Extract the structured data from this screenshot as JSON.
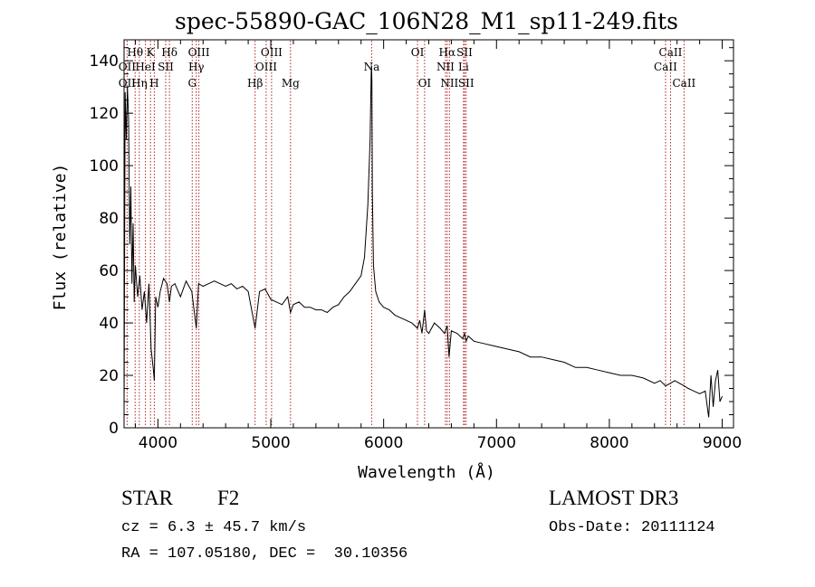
{
  "chart_data": {
    "type": "line",
    "title": "spec-55890-GAC_106N28_M1_sp11-249.fits",
    "xlabel": "Wavelength (Å)",
    "ylabel": "Flux (relative)",
    "xlim": [
      3700,
      9100
    ],
    "ylim": [
      0,
      148
    ],
    "xticks": [
      4000,
      5000,
      6000,
      7000,
      8000,
      9000
    ],
    "xtick_labels": [
      "4000",
      "5000",
      "6000",
      "7000",
      "8000",
      "9000"
    ],
    "yticks": [
      0,
      20,
      40,
      60,
      80,
      100,
      120,
      140
    ],
    "ytick_labels": [
      "0",
      "20",
      "40",
      "60",
      "80",
      "100",
      "120",
      "140"
    ],
    "line_color": "#000000",
    "marker_color": "#b22222",
    "spectrum": {
      "x": [
        3700,
        3710,
        3720,
        3730,
        3740,
        3750,
        3760,
        3770,
        3780,
        3790,
        3800,
        3820,
        3840,
        3860,
        3880,
        3900,
        3920,
        3940,
        3960,
        3968,
        3980,
        4000,
        4020,
        4050,
        4080,
        4102,
        4120,
        4150,
        4200,
        4250,
        4300,
        4340,
        4360,
        4400,
        4450,
        4500,
        4550,
        4600,
        4650,
        4700,
        4750,
        4800,
        4861,
        4900,
        4950,
        5000,
        5050,
        5100,
        5150,
        5175,
        5200,
        5250,
        5300,
        5350,
        5400,
        5450,
        5500,
        5550,
        5600,
        5650,
        5700,
        5750,
        5800,
        5830,
        5860,
        5880,
        5890,
        5893,
        5896,
        5900,
        5910,
        5930,
        5960,
        6000,
        6050,
        6100,
        6150,
        6200,
        6250,
        6300,
        6320,
        6340,
        6363,
        6380,
        6400,
        6450,
        6500,
        6540,
        6563,
        6580,
        6600,
        6650,
        6700,
        6717,
        6731,
        6750,
        6800,
        6900,
        7000,
        7100,
        7200,
        7300,
        7400,
        7500,
        7600,
        7700,
        7800,
        7900,
        8000,
        8100,
        8200,
        8300,
        8400,
        8450,
        8498,
        8542,
        8580,
        8620,
        8662,
        8700,
        8750,
        8800,
        8850,
        8880,
        8900,
        8920,
        8940,
        8960,
        8980,
        9000
      ],
      "y": [
        5,
        128,
        110,
        130,
        118,
        70,
        92,
        55,
        78,
        48,
        62,
        50,
        58,
        45,
        52,
        40,
        55,
        30,
        22,
        18,
        50,
        46,
        52,
        57,
        55,
        48,
        54,
        55,
        50,
        56,
        52,
        38,
        55,
        54,
        55,
        56,
        55,
        54,
        55,
        53,
        54,
        52,
        38,
        52,
        53,
        49,
        48,
        47,
        50,
        44,
        47,
        48,
        46,
        46,
        45,
        45,
        44,
        46,
        47,
        50,
        52,
        55,
        58,
        65,
        85,
        110,
        135,
        138,
        132,
        90,
        62,
        52,
        48,
        46,
        45,
        43,
        42,
        41,
        40,
        38,
        41,
        36,
        45,
        37,
        36,
        40,
        38,
        36,
        39,
        27,
        37,
        36,
        34,
        36,
        33,
        35,
        33,
        32,
        31,
        30,
        29,
        27,
        27,
        26,
        25,
        23,
        23,
        22,
        21,
        20,
        20,
        19,
        17,
        18,
        16,
        17,
        18,
        17,
        16,
        15,
        14,
        13,
        14,
        4,
        20,
        8,
        18,
        22,
        10,
        12
      ]
    },
    "lines": [
      {
        "name": "OII",
        "wl": 3727,
        "row": 2
      },
      {
        "name": "OII",
        "wl": 3727,
        "row": 3
      },
      {
        "name": "Hθ",
        "wl": 3798,
        "row": 1
      },
      {
        "name": "Hη",
        "wl": 3835,
        "row": 3
      },
      {
        "name": "HeI",
        "wl": 3889,
        "row": 2
      },
      {
        "name": "K",
        "wl": 3934,
        "row": 1
      },
      {
        "name": "H",
        "wl": 3968,
        "row": 3
      },
      {
        "name": "SII",
        "wl": 4069,
        "row": 2
      },
      {
        "name": "Hδ",
        "wl": 4102,
        "row": 1
      },
      {
        "name": "G",
        "wl": 4304,
        "row": 3
      },
      {
        "name": "Hγ",
        "wl": 4340,
        "row": 2
      },
      {
        "name": "OIII",
        "wl": 4363,
        "row": 1
      },
      {
        "name": "Hβ",
        "wl": 4861,
        "row": 3
      },
      {
        "name": "OIII",
        "wl": 4959,
        "row": 2
      },
      {
        "name": "OIII",
        "wl": 5007,
        "row": 1
      },
      {
        "name": "Mg",
        "wl": 5175,
        "row": 3
      },
      {
        "name": "Na",
        "wl": 5894,
        "row": 2
      },
      {
        "name": "OI",
        "wl": 6300,
        "row": 1
      },
      {
        "name": "OI",
        "wl": 6363,
        "row": 3
      },
      {
        "name": "NII",
        "wl": 6548,
        "row": 2
      },
      {
        "name": "Hα",
        "wl": 6563,
        "row": 1
      },
      {
        "name": "NII",
        "wl": 6583,
        "row": 3
      },
      {
        "name": "SII",
        "wl": 6717,
        "row": 1
      },
      {
        "name": "Li",
        "wl": 6708,
        "row": 2
      },
      {
        "name": "SII",
        "wl": 6731,
        "row": 3
      },
      {
        "name": "CaII",
        "wl": 8498,
        "row": 2
      },
      {
        "name": "CaII",
        "wl": 8542,
        "row": 1
      },
      {
        "name": "CaII",
        "wl": 8662,
        "row": 3
      }
    ]
  },
  "info": {
    "class_label": "STAR",
    "subclass": "F2",
    "cz": "cz = 6.3 ± 45.7 km/s",
    "radec": "RA = 107.05180, DEC =  30.10356",
    "survey": "LAMOST DR3",
    "obs_date": "Obs-Date: 20111124"
  }
}
